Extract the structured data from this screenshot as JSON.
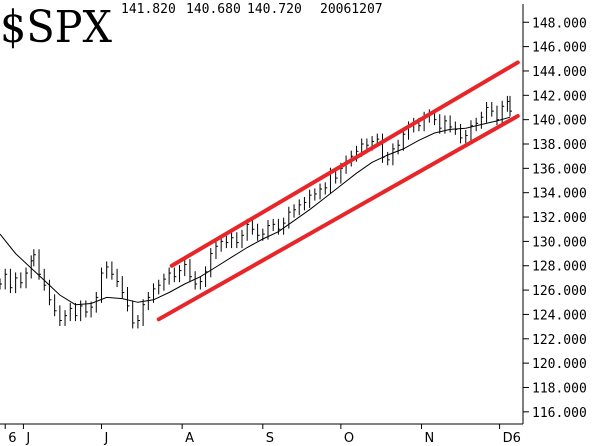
{
  "chart_data": {
    "type": "line",
    "title": "$SPX",
    "header_values": [
      "141.820",
      "140.680",
      "140.720",
      "20061207"
    ],
    "y_ticks": [
      "116.000",
      "118.000",
      "120.000",
      "122.000",
      "124.000",
      "126.000",
      "128.000",
      "130.000",
      "132.000",
      "134.000",
      "136.000",
      "138.000",
      "140.000",
      "142.000",
      "144.000",
      "146.000",
      "148.000"
    ],
    "ylim": [
      115.0,
      149.5
    ],
    "x_ticks": [
      {
        "label": "6",
        "day": -7
      },
      {
        "label": "J",
        "day": 0
      },
      {
        "label": "J",
        "day": 30
      },
      {
        "label": "A",
        "day": 61
      },
      {
        "label": "S",
        "day": 92
      },
      {
        "label": "O",
        "day": 122
      },
      {
        "label": "N",
        "day": 153
      },
      {
        "label": "D6",
        "day": 183
      }
    ],
    "xlim": [
      -9,
      192
    ],
    "grid": false,
    "series": [
      {
        "style": "bars",
        "points": [
          [
            -9,
            126.5
          ],
          [
            -7,
            127.3
          ],
          [
            -5,
            126.2
          ],
          [
            -3,
            127.0
          ],
          [
            -1,
            126.6
          ],
          [
            1,
            127.4
          ],
          [
            3,
            128.4
          ],
          [
            4,
            128.9
          ],
          [
            6,
            127.3
          ],
          [
            8,
            126.4
          ],
          [
            10,
            125.2
          ],
          [
            12,
            124.3
          ],
          [
            14,
            123.5
          ],
          [
            16,
            123.9
          ],
          [
            18,
            124.5
          ],
          [
            20,
            123.9
          ],
          [
            22,
            124.7
          ],
          [
            24,
            124.2
          ],
          [
            26,
            124.6
          ],
          [
            28,
            125.4
          ],
          [
            30,
            127.4
          ],
          [
            32,
            127.9
          ],
          [
            34,
            127.3
          ],
          [
            36,
            126.7
          ],
          [
            38,
            125.8
          ],
          [
            40,
            124.7
          ],
          [
            42,
            123.3
          ],
          [
            44,
            123.5
          ],
          [
            46,
            124.8
          ],
          [
            48,
            125.4
          ],
          [
            50,
            126.1
          ],
          [
            52,
            126.4
          ],
          [
            54,
            126.9
          ],
          [
            56,
            127.4
          ],
          [
            58,
            127.1
          ],
          [
            60,
            127.6
          ],
          [
            62,
            128.1
          ],
          [
            64,
            127.1
          ],
          [
            66,
            126.5
          ],
          [
            68,
            126.7
          ],
          [
            70,
            127.5
          ],
          [
            72,
            129.0
          ],
          [
            74,
            129.6
          ],
          [
            76,
            130.0
          ],
          [
            78,
            129.9
          ],
          [
            80,
            130.3
          ],
          [
            82,
            129.9
          ],
          [
            84,
            130.5
          ],
          [
            86,
            131.4
          ],
          [
            88,
            131.0
          ],
          [
            90,
            130.5
          ],
          [
            92,
            130.6
          ],
          [
            94,
            131.3
          ],
          [
            96,
            131.4
          ],
          [
            98,
            131.0
          ],
          [
            100,
            131.5
          ],
          [
            102,
            132.4
          ],
          [
            104,
            132.6
          ],
          [
            106,
            133.0
          ],
          [
            108,
            133.2
          ],
          [
            110,
            133.8
          ],
          [
            112,
            133.9
          ],
          [
            114,
            134.3
          ],
          [
            116,
            134.4
          ],
          [
            118,
            135.6
          ],
          [
            120,
            135.2
          ],
          [
            122,
            136.0
          ],
          [
            124,
            136.6
          ],
          [
            126,
            137.0
          ],
          [
            128,
            137.4
          ],
          [
            130,
            138.0
          ],
          [
            132,
            137.9
          ],
          [
            134,
            138.2
          ],
          [
            136,
            138.4
          ],
          [
            138,
            136.9
          ],
          [
            140,
            136.7
          ],
          [
            142,
            137.6
          ],
          [
            144,
            137.9
          ],
          [
            146,
            138.8
          ],
          [
            148,
            139.4
          ],
          [
            150,
            139.7
          ],
          [
            152,
            139.5
          ],
          [
            154,
            140.2
          ],
          [
            156,
            140.4
          ],
          [
            158,
            140.0
          ],
          [
            160,
            139.3
          ],
          [
            162,
            139.9
          ],
          [
            164,
            139.4
          ],
          [
            166,
            139.2
          ],
          [
            168,
            138.5
          ],
          [
            170,
            138.7
          ],
          [
            172,
            139.5
          ],
          [
            174,
            139.7
          ],
          [
            176,
            140.2
          ],
          [
            178,
            141.0
          ],
          [
            180,
            140.7
          ],
          [
            182,
            140.0
          ],
          [
            184,
            141.1
          ],
          [
            186,
            141.5
          ],
          [
            187,
            140.7
          ]
        ]
      },
      {
        "style": "line",
        "points": [
          [
            -9,
            130.6
          ],
          [
            -3,
            129.0
          ],
          [
            2,
            128.0
          ],
          [
            8,
            126.8
          ],
          [
            14,
            125.6
          ],
          [
            20,
            124.8
          ],
          [
            26,
            124.9
          ],
          [
            32,
            125.4
          ],
          [
            38,
            125.3
          ],
          [
            44,
            125.0
          ],
          [
            50,
            125.2
          ],
          [
            56,
            125.8
          ],
          [
            62,
            126.5
          ],
          [
            68,
            127.1
          ],
          [
            74,
            127.9
          ],
          [
            80,
            128.7
          ],
          [
            86,
            129.5
          ],
          [
            92,
            130.2
          ],
          [
            98,
            130.8
          ],
          [
            104,
            131.7
          ],
          [
            110,
            132.6
          ],
          [
            116,
            133.6
          ],
          [
            122,
            134.6
          ],
          [
            128,
            135.6
          ],
          [
            134,
            136.5
          ],
          [
            140,
            137.1
          ],
          [
            146,
            137.6
          ],
          [
            152,
            138.3
          ],
          [
            158,
            138.9
          ],
          [
            164,
            139.2
          ],
          [
            170,
            139.3
          ],
          [
            176,
            139.6
          ],
          [
            182,
            139.9
          ],
          [
            187,
            140.2
          ]
        ]
      }
    ],
    "channel_lines": [
      {
        "from": [
          52,
          123.6
        ],
        "to": [
          190,
          140.3
        ]
      },
      {
        "from": [
          57,
          128.0
        ],
        "to": [
          190,
          144.7
        ]
      }
    ],
    "colors": {
      "price": "#000000",
      "channel": "#e8262a",
      "background": "#ffffff"
    }
  }
}
